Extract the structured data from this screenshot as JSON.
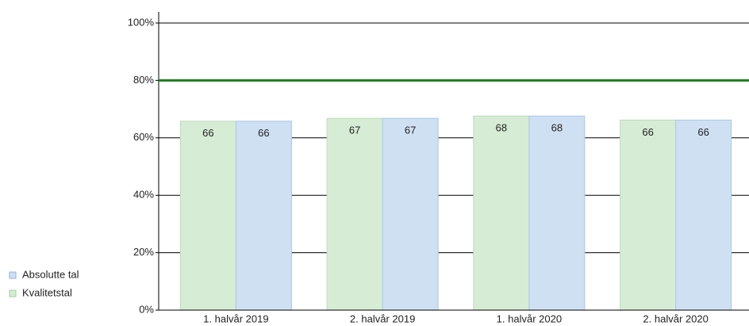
{
  "chart_data": {
    "type": "bar",
    "categories": [
      "1. halvår 2019",
      "2. halvår 2019",
      "1. halvår 2020",
      "2. halvår 2020"
    ],
    "series": [
      {
        "name": "Kvalitetstal",
        "color": "#d6ecd5",
        "values": [
          65.8,
          66.8,
          67.6,
          66.2
        ],
        "value_labels": [
          "66",
          "67",
          "68",
          "66"
        ]
      },
      {
        "name": "Absolutte tal",
        "color": "#cfe0f3",
        "values": [
          65.8,
          66.8,
          67.6,
          66.2
        ],
        "value_labels": [
          "66",
          "67",
          "68",
          "66"
        ]
      }
    ],
    "ylim": [
      0,
      100
    ],
    "yticks": [
      {
        "value": 0,
        "label": "0%"
      },
      {
        "value": 20,
        "label": "20%"
      },
      {
        "value": 40,
        "label": "40%"
      },
      {
        "value": 60,
        "label": "60%"
      },
      {
        "value": 80,
        "label": "80%"
      },
      {
        "value": 100,
        "label": "100%"
      }
    ],
    "grid": true,
    "reference_line": {
      "value": 80,
      "color": "#1e7d1e"
    },
    "legend": "left"
  }
}
